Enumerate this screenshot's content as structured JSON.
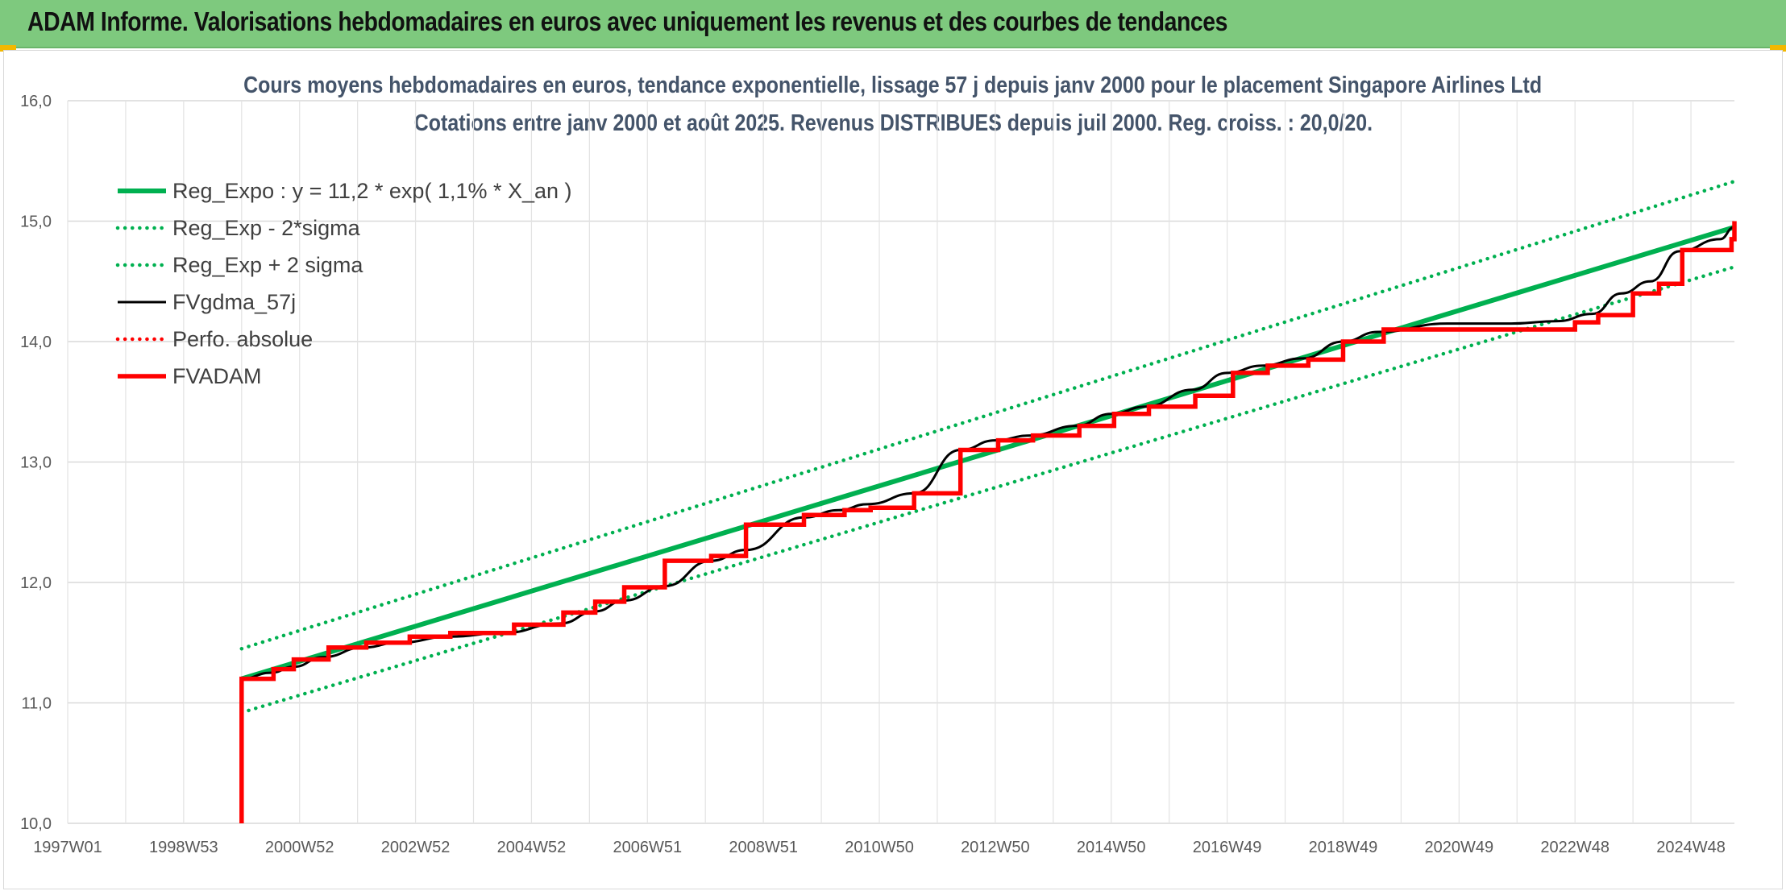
{
  "banner": {
    "title": "ADAM Informe. Valorisations hebdomadaires en euros avec uniquement les revenus et des courbes de tendances"
  },
  "colors": {
    "banner": "#7ec97e",
    "trend": "#00b050",
    "smooth": "#000000",
    "fvadam": "#ff0000",
    "title": "#44546a"
  },
  "chart_data": {
    "type": "line",
    "title": "Cours moyens hebdomadaires en euros, tendance exponentielle, lissage 57 j depuis janv 2000 pour le placement Singapore Airlines Ltd",
    "subtitle": "Cotations entre janv 2000 et août 2025. Revenus DISTRIBUES depuis juil 2000. Reg. croiss. : 20,0/20.",
    "xlabel": "",
    "ylabel": "",
    "x_range_years": [
      1997.0,
      2025.75
    ],
    "ylim": [
      10.0,
      16.0
    ],
    "y_ticks": [
      "10,0",
      "11,0",
      "12,0",
      "13,0",
      "14,0",
      "15,0",
      "16,0"
    ],
    "x_tick_labels": [
      "1997W01",
      "1998W53",
      "2000W52",
      "2002W52",
      "2004W52",
      "2006W51",
      "2008W51",
      "2010W50",
      "2012W50",
      "2014W50",
      "2016W49",
      "2018W49",
      "2020W49",
      "2022W48",
      "2024W48"
    ],
    "x_tick_years": [
      1997.0,
      1999.0,
      2001.0,
      2003.0,
      2005.0,
      2007.0,
      2009.0,
      2011.0,
      2013.0,
      2015.0,
      2017.0,
      2019.0,
      2021.0,
      2023.0,
      2025.0
    ],
    "grid": true,
    "legend_position": "top-left",
    "series": [
      {
        "name": "Reg_Expo : y = 11,2 * exp( 1,1% *  X_an )",
        "style": "solid-thick",
        "color": "#00b050",
        "x": [
          2000.0,
          2025.75
        ],
        "y": [
          11.2,
          14.95
        ]
      },
      {
        "name": "Reg_Exp - 2*sigma",
        "style": "dotted",
        "color": "#00b050",
        "x": [
          2000.0,
          2025.75
        ],
        "y": [
          10.92,
          14.62
        ]
      },
      {
        "name": "Reg_Exp + 2 sigma",
        "style": "dotted",
        "color": "#00b050",
        "x": [
          2000.0,
          2025.75
        ],
        "y": [
          11.45,
          15.33
        ]
      },
      {
        "name": "FVgdma_57j",
        "style": "solid",
        "color": "#000000",
        "x": [
          2000.0,
          2000.5,
          2000.9,
          2001.4,
          2002.1,
          2002.7,
          2003.6,
          2004.5,
          2005.5,
          2006.1,
          2006.6,
          2007.3,
          2008.1,
          2008.7,
          2009.7,
          2010.3,
          2010.8,
          2011.6,
          2012.4,
          2013.0,
          2013.6,
          2014.4,
          2015.0,
          2015.6,
          2016.4,
          2017.0,
          2017.6,
          2018.3,
          2019.0,
          2019.6,
          2020.8,
          2021.9,
          2022.7,
          2023.3,
          2023.8,
          2024.3,
          2024.8,
          2025.5,
          2025.75
        ],
        "y": [
          11.2,
          11.25,
          11.3,
          11.38,
          11.46,
          11.5,
          11.55,
          11.58,
          11.66,
          11.76,
          11.85,
          11.97,
          12.18,
          12.27,
          12.54,
          12.6,
          12.65,
          12.74,
          13.1,
          13.18,
          13.22,
          13.3,
          13.4,
          13.46,
          13.6,
          13.74,
          13.8,
          13.86,
          14.0,
          14.08,
          14.15,
          14.15,
          14.17,
          14.23,
          14.4,
          14.5,
          14.75,
          14.85,
          14.95
        ]
      },
      {
        "name": "Perfo. absolue",
        "style": "dotted",
        "color": "#ff0000",
        "x": [],
        "y": []
      },
      {
        "name": "FVADAM",
        "style": "step-thick",
        "color": "#ff0000",
        "x": [
          2000.0,
          2000.0,
          2000.55,
          2000.9,
          2001.5,
          2002.15,
          2002.9,
          2003.6,
          2004.7,
          2005.55,
          2006.1,
          2006.6,
          2007.3,
          2008.1,
          2008.7,
          2009.7,
          2010.4,
          2010.85,
          2011.6,
          2012.4,
          2013.05,
          2013.65,
          2014.45,
          2015.05,
          2015.65,
          2016.45,
          2017.1,
          2017.7,
          2018.4,
          2019.0,
          2019.7,
          2023.0,
          2023.4,
          2024.0,
          2024.45,
          2024.85,
          2025.7,
          2025.75
        ],
        "y": [
          10.0,
          11.2,
          11.28,
          11.36,
          11.46,
          11.5,
          11.55,
          11.58,
          11.65,
          11.75,
          11.84,
          11.96,
          12.18,
          12.22,
          12.48,
          12.56,
          12.6,
          12.62,
          12.74,
          13.1,
          13.18,
          13.22,
          13.3,
          13.4,
          13.46,
          13.55,
          13.74,
          13.8,
          13.85,
          14.0,
          14.1,
          14.16,
          14.22,
          14.4,
          14.48,
          14.76,
          14.85,
          15.0
        ]
      }
    ]
  }
}
